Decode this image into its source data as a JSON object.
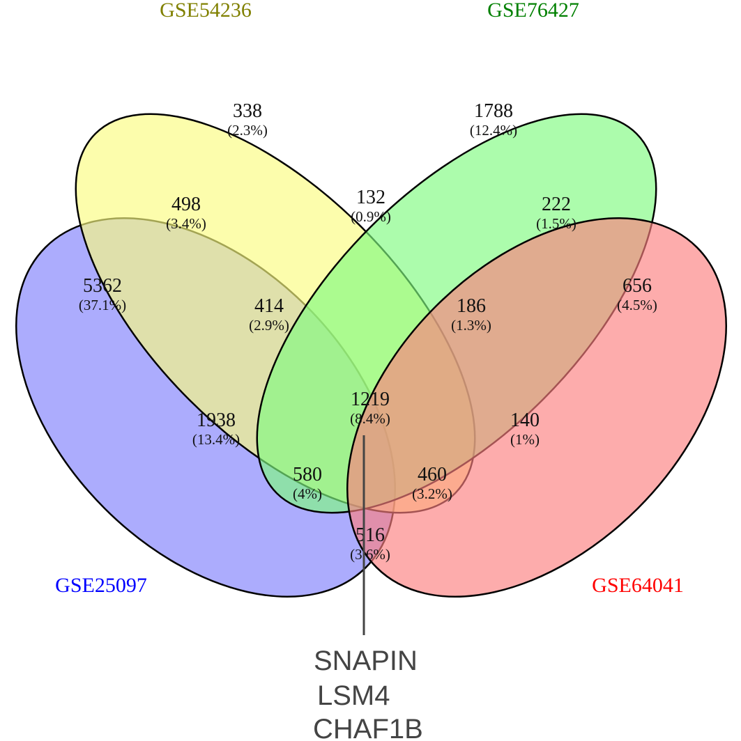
{
  "sets": [
    {
      "name": "GSE25097",
      "color": "#0000ff",
      "fill": "#7f7ffc"
    },
    {
      "name": "GSE54236",
      "color": "#808000",
      "fill": "#fbfc7f"
    },
    {
      "name": "GSE76427",
      "color": "#008000",
      "fill": "#7ffb7f"
    },
    {
      "name": "GSE64041",
      "color": "#ff0000",
      "fill": "#fc7f7f"
    }
  ],
  "regions": [
    {
      "count": "338",
      "percent": "(2.3%)"
    },
    {
      "count": "1788",
      "percent": "(12.4%)"
    },
    {
      "count": "498",
      "percent": "(3.4%)"
    },
    {
      "count": "132",
      "percent": "(0.9%)"
    },
    {
      "count": "222",
      "percent": "(1.5%)"
    },
    {
      "count": "5362",
      "percent": "(37.1%)"
    },
    {
      "count": "414",
      "percent": "(2.9%)"
    },
    {
      "count": "186",
      "percent": "(1.3%)"
    },
    {
      "count": "656",
      "percent": "(4.5%)"
    },
    {
      "count": "1219",
      "percent": "(8.4%)"
    },
    {
      "count": "1938",
      "percent": "(13.4%)"
    },
    {
      "count": "140",
      "percent": "(1%)"
    },
    {
      "count": "580",
      "percent": "(4%)"
    },
    {
      "count": "460",
      "percent": "(3.2%)"
    },
    {
      "count": "516",
      "percent": "(3.6%)"
    }
  ],
  "genes": [
    "SNAPIN",
    "LSM4",
    "CHAF1B"
  ]
}
